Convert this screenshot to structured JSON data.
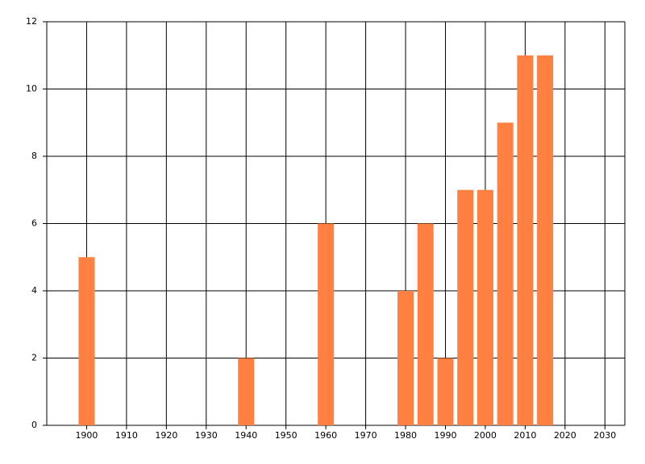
{
  "chart_data": {
    "type": "bar",
    "x": [
      1900,
      1940,
      1960,
      1980,
      1985,
      1990,
      1995,
      2000,
      2005,
      2010,
      2015
    ],
    "values": [
      5,
      2,
      6,
      4,
      6,
      2,
      7,
      7,
      9,
      11,
      11
    ],
    "color": "#ff8040",
    "xlim": [
      1890,
      2035
    ],
    "xticks": [
      1900,
      1910,
      1920,
      1930,
      1940,
      1950,
      1960,
      1970,
      1980,
      1990,
      2000,
      2010,
      2020,
      2030
    ],
    "ylim": [
      0,
      12
    ],
    "yticks": [
      0,
      2,
      4,
      6,
      8,
      10,
      12
    ],
    "grid": true
  }
}
